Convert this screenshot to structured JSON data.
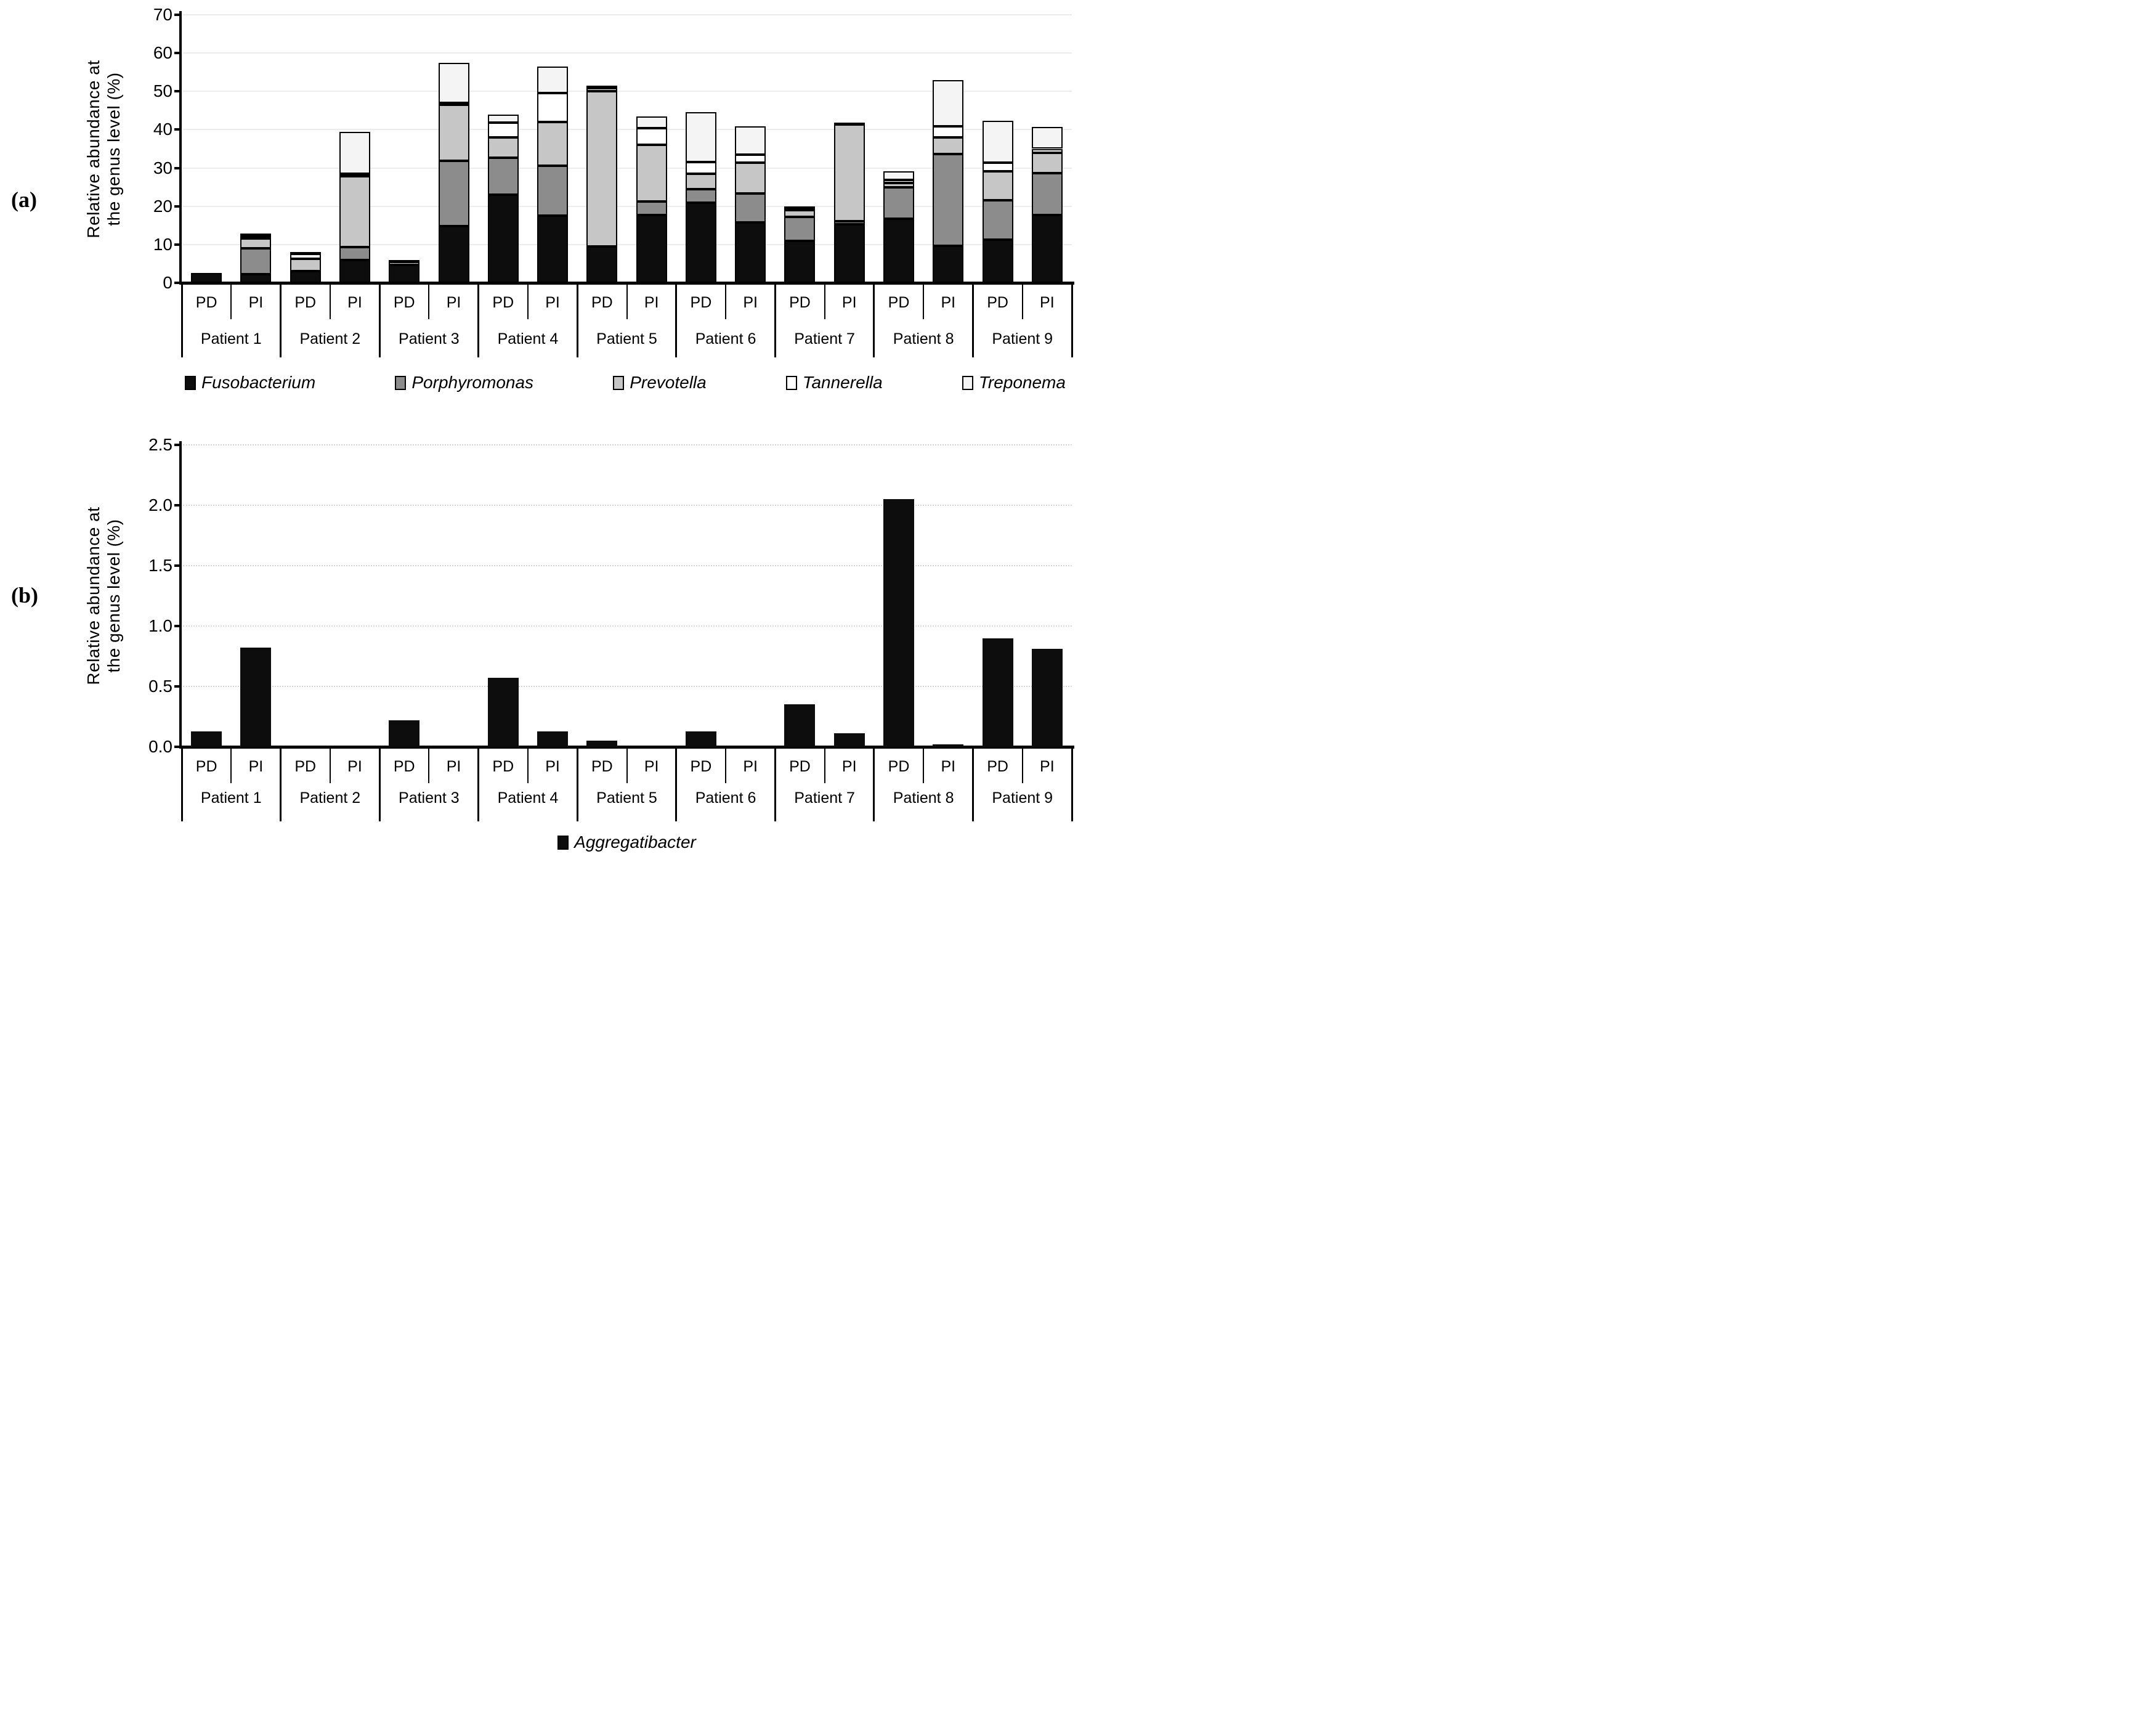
{
  "figure": {
    "panel_a_label": "(a)",
    "panel_b_label": "(b)"
  },
  "chart_data": [
    {
      "id": "a",
      "type": "stacked-bar",
      "ylabel_lines": [
        "Relative abundance at",
        "the genus level (%)"
      ],
      "ylim": [
        0,
        70
      ],
      "ytick_step": 10,
      "ytick_labels": [
        "0",
        "10",
        "20",
        "30",
        "40",
        "50",
        "60",
        "70"
      ],
      "grid": "solid",
      "legend_position": "bottom",
      "conditions": [
        "PD",
        "PI"
      ],
      "patients": [
        "Patient 1",
        "Patient 2",
        "Patient 3",
        "Patient 4",
        "Patient 5",
        "Patient 6",
        "Patient 7",
        "Patient 8",
        "Patient 9"
      ],
      "columns": [
        "Patient 1 PD",
        "Patient 1 PI",
        "Patient 2 PD",
        "Patient 2 PI",
        "Patient 3 PD",
        "Patient 3 PI",
        "Patient 4 PD",
        "Patient 4 PI",
        "Patient 5 PD",
        "Patient 5 PI",
        "Patient 6 PD",
        "Patient 6 PI",
        "Patient 7 PD",
        "Patient 7 PI",
        "Patient 8 PD",
        "Patient 8 PI",
        "Patient 9 PD",
        "Patient 9 PI"
      ],
      "series": [
        {
          "name": "Fusobacterium",
          "color": "#0d0d0d",
          "values": [
            2.5,
            2.3,
            3.1,
            6.0,
            4.6,
            14.8,
            23.0,
            17.5,
            9.5,
            17.7,
            21.0,
            15.8,
            11.0,
            15.3,
            16.7,
            9.6,
            11.2,
            17.7
          ]
        },
        {
          "name": "Porphyromonas",
          "color": "#8c8c8c",
          "values": [
            0,
            6.7,
            0,
            3.3,
            0,
            17.0,
            9.6,
            13.0,
            0,
            3.6,
            3.5,
            7.6,
            6.2,
            0.8,
            8.2,
            24.1,
            10.3,
            11.0
          ]
        },
        {
          "name": "Prevotella",
          "color": "#c6c6c6",
          "values": [
            0,
            2.6,
            3.1,
            18.5,
            0.8,
            14.7,
            5.3,
            11.5,
            40.5,
            14.8,
            4.0,
            7.9,
            1.8,
            25.2,
            1.2,
            4.3,
            7.7,
            5.3
          ]
        },
        {
          "name": "Tannerella",
          "color": "#ffffff",
          "values": [
            0,
            0.6,
            1.3,
            0.7,
            0.6,
            0.5,
            3.9,
            7.5,
            0.8,
            4.3,
            3.0,
            2.2,
            0.3,
            0,
            0.7,
            2.9,
            2.1,
            1.0
          ]
        },
        {
          "name": "Treponema",
          "color": "#f4f4f4",
          "values": [
            0,
            0.6,
            0.5,
            11.0,
            0,
            10.5,
            2.2,
            7.0,
            0.7,
            3.1,
            13.0,
            7.4,
            0.4,
            0.2,
            2.4,
            12.1,
            11.0,
            5.7
          ]
        }
      ]
    },
    {
      "id": "b",
      "type": "bar",
      "ylabel_lines": [
        "Relative abundance at",
        "the genus level (%)"
      ],
      "ylim": [
        0,
        2.5
      ],
      "ytick_step": 0.5,
      "ytick_labels": [
        "0.0",
        "0.5",
        "1.0",
        "1.5",
        "2.0",
        "2.5"
      ],
      "grid": "dotted",
      "legend_position": "bottom",
      "conditions": [
        "PD",
        "PI"
      ],
      "patients": [
        "Patient 1",
        "Patient 2",
        "Patient 3",
        "Patient 4",
        "Patient 5",
        "Patient 6",
        "Patient 7",
        "Patient 8",
        "Patient 9"
      ],
      "columns": [
        "Patient 1 PD",
        "Patient 1 PI",
        "Patient 2 PD",
        "Patient 2 PI",
        "Patient 3 PD",
        "Patient 3 PI",
        "Patient 4 PD",
        "Patient 4 PI",
        "Patient 5 PD",
        "Patient 5 PI",
        "Patient 6 PD",
        "Patient 6 PI",
        "Patient 7 PD",
        "Patient 7 PI",
        "Patient 8 PD",
        "Patient 8 PI",
        "Patient 9 PD",
        "Patient 9 PI"
      ],
      "series": [
        {
          "name": "Aggregatibacter",
          "color": "#0d0d0d",
          "values": [
            0.13,
            0.82,
            0,
            0,
            0.22,
            0,
            0.57,
            0.13,
            0.05,
            0,
            0.13,
            0,
            0.35,
            0.11,
            2.05,
            0.02,
            0.9,
            0.81
          ]
        }
      ]
    }
  ]
}
